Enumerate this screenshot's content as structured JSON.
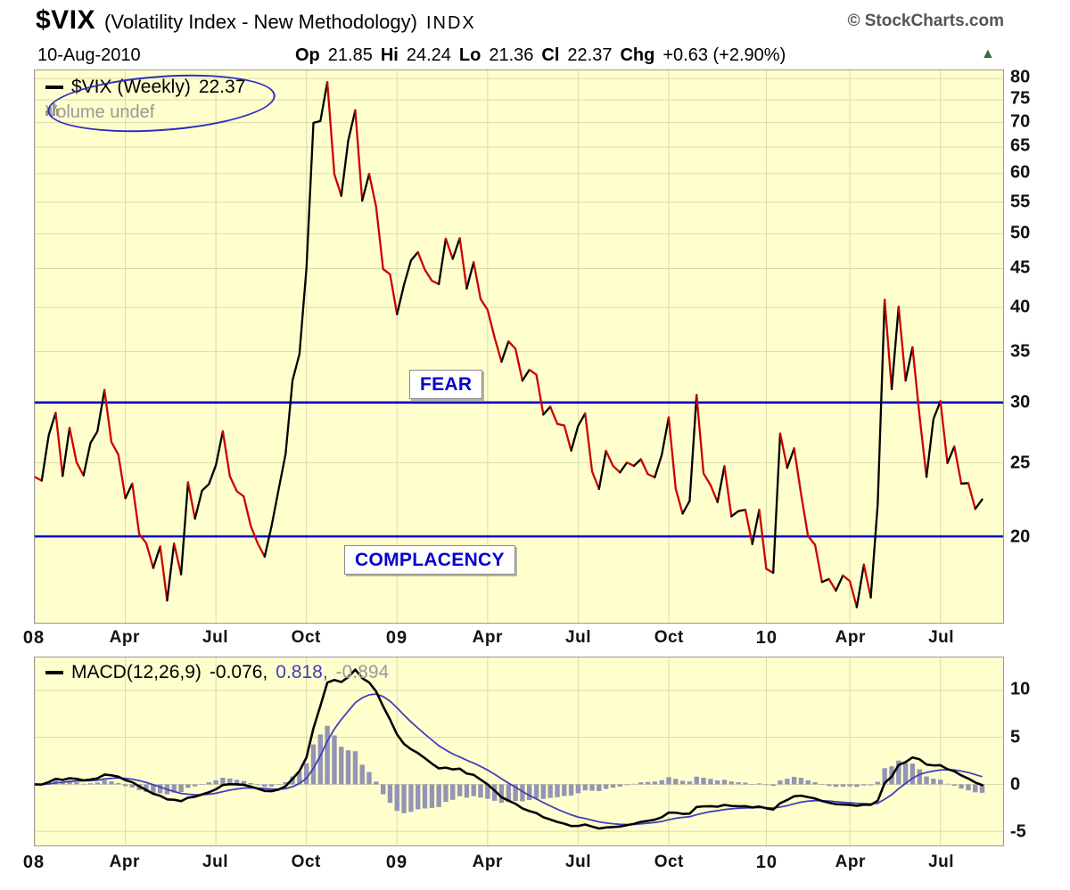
{
  "header": {
    "symbol": "$VIX",
    "name": "(Volatility Index - New Methodology)",
    "exchange": "INDX",
    "credit": "© StockCharts.com",
    "date": "10-Aug-2010",
    "arrow": "▲",
    "change_direction": "up",
    "quote": {
      "op_label": "Op",
      "op": "21.85",
      "hi_label": "Hi",
      "hi": "24.24",
      "lo_label": "Lo",
      "lo": "21.36",
      "cl_label": "Cl",
      "cl": "22.37",
      "chg_label": "Chg",
      "chg": "+0.63 (+2.90%)"
    }
  },
  "colors": {
    "panel_bg": "#ffffce",
    "panel_border": "#999999",
    "grid": "#d9d9ab",
    "price_up": "#000000",
    "price_down": "#cc0000",
    "threshold": "#0000cc",
    "annotation": "#2d2dbb",
    "macd_line": "#000000",
    "signal_line": "#3f3fbf",
    "histogram": "#9494b4",
    "muted_text": "#999999",
    "credit_text": "#555555",
    "axis_text": "#111111",
    "arrow": "#446644"
  },
  "chart_data": [
    {
      "type": "line",
      "title": "$VIX (Weekly) 22.37",
      "legend_label": "$VIX (Weekly)",
      "legend_value": "22.37",
      "volume_label": "Volume undef",
      "scale": "log",
      "grid": true,
      "legend_position": "top-left",
      "ylim": [
        15.4,
        82
      ],
      "yticks": [
        80,
        75,
        70,
        65,
        60,
        55,
        50,
        45,
        40,
        35,
        30,
        25,
        20
      ],
      "x_total": 139,
      "xticks": [
        {
          "label": "08",
          "index": 0,
          "year": true
        },
        {
          "label": "Apr",
          "index": 13
        },
        {
          "label": "Jul",
          "index": 26
        },
        {
          "label": "Oct",
          "index": 39
        },
        {
          "label": "09",
          "index": 52,
          "year": true
        },
        {
          "label": "Apr",
          "index": 65
        },
        {
          "label": "Jul",
          "index": 78
        },
        {
          "label": "Oct",
          "index": 91
        },
        {
          "label": "10",
          "index": 105,
          "year": true
        },
        {
          "label": "Apr",
          "index": 117
        },
        {
          "label": "Jul",
          "index": 130
        }
      ],
      "hlines": [
        {
          "value": 30,
          "label": "FEAR"
        },
        {
          "value": 20,
          "label": "COMPLACENCY"
        }
      ],
      "closes": [
        23.94,
        23.68,
        27.18,
        29.08,
        24.02,
        27.79,
        25.02,
        24.06,
        26.54,
        27.49,
        31.16,
        26.62,
        25.61,
        22.45,
        23.46,
        20.13,
        19.6,
        18.18,
        19.4,
        16.47,
        19.57,
        17.83,
        23.56,
        21.1,
        22.97,
        23.44,
        24.81,
        27.49,
        24.0,
        22.93,
        22.57,
        20.66,
        19.58,
        18.81,
        20.65,
        23.06,
        25.66,
        32.07,
        34.74,
        45.14,
        69.95,
        70.33,
        79.13,
        59.89,
        56.1,
        66.31,
        72.67,
        55.28,
        59.93,
        54.28,
        44.93,
        44.22,
        39.19,
        42.82,
        46.11,
        47.29,
        44.84,
        43.37,
        42.93,
        49.27,
        46.35,
        49.33,
        42.36,
        45.89,
        41.04,
        39.7,
        36.53,
        33.94,
        36.09,
        35.3,
        32.05,
        33.12,
        32.63,
        28.92,
        29.62,
        28.12,
        27.99,
        25.93,
        27.95,
        29.02,
        24.34,
        23.09,
        25.92,
        24.76,
        24.27,
        25.01,
        24.76,
        25.26,
        24.15,
        23.92,
        25.61,
        28.68,
        23.12,
        21.43,
        22.27,
        30.69,
        24.2,
        23.36,
        22.19,
        24.74,
        21.25,
        21.59,
        21.68,
        19.54,
        21.68,
        18.13,
        17.91,
        27.31,
        24.62,
        26.11,
        22.73,
        20.02,
        19.5,
        17.42,
        17.58,
        16.97,
        17.77,
        17.47,
        16.14,
        18.36,
        16.62,
        22.05,
        40.95,
        31.24,
        40.1,
        32.07,
        35.48,
        28.79,
        23.95,
        28.53,
        30.12,
        24.98,
        26.25,
        23.47,
        23.5,
        21.74,
        22.37
      ]
    },
    {
      "type": "macd",
      "legend_label": "MACD(12,26,9)",
      "macd_value": "-0.076,",
      "signal_value": "0.818,",
      "hist_value": "-0.894",
      "params": [
        12,
        26,
        9
      ],
      "scale": "linear",
      "ylim": [
        -6.5,
        13.5
      ],
      "yticks": [
        10,
        5,
        0,
        -5
      ]
    }
  ]
}
